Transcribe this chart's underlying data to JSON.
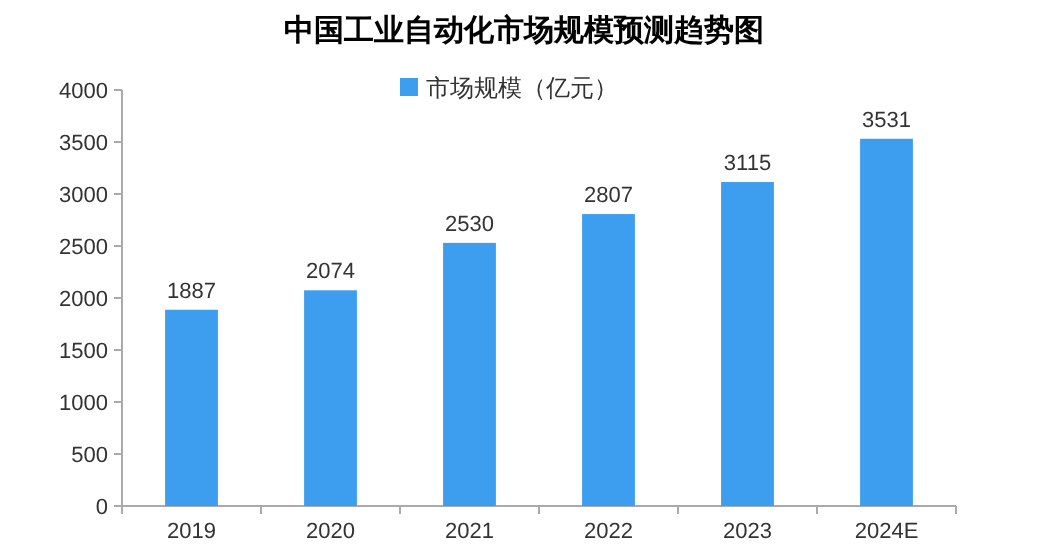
{
  "chart_data": {
    "type": "bar",
    "title": "中国工业自动化市场规模预测趋势图",
    "categories": [
      "2019",
      "2020",
      "2021",
      "2022",
      "2023",
      "2024E"
    ],
    "series": [
      {
        "name": "市场规模（亿元）",
        "color": "#3d9ef0",
        "values": [
          1887,
          2074,
          2530,
          2807,
          3115,
          3531
        ]
      }
    ],
    "ylim": [
      0,
      4000
    ],
    "yticks": [
      0,
      500,
      1000,
      1500,
      2000,
      2500,
      3000,
      3500,
      4000
    ],
    "data_labels": true,
    "legend": "top",
    "grid": false
  }
}
